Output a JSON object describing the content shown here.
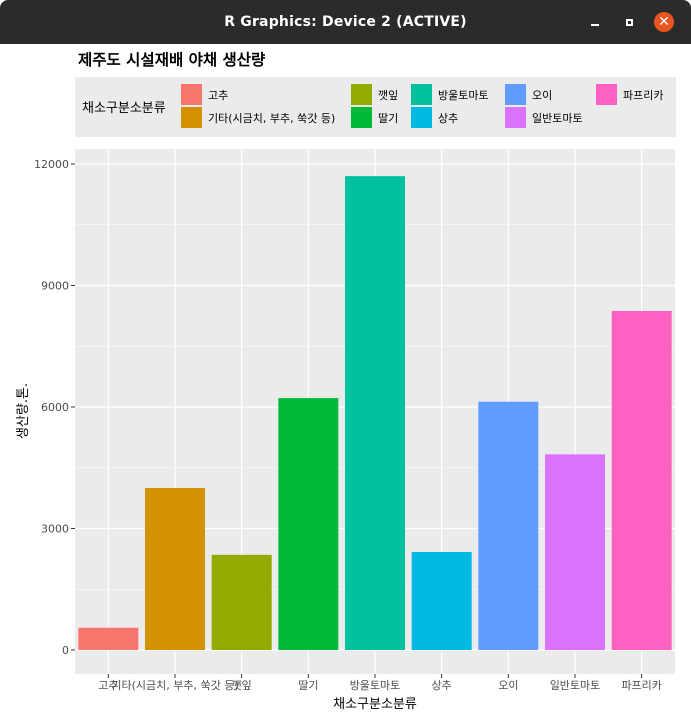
{
  "window": {
    "title": "R Graphics: Device 2 (ACTIVE)",
    "buttons": {
      "minimize_icon": "minimize-icon",
      "maximize_icon": "maximize-icon",
      "close_icon": "close-icon"
    },
    "close_glyph": "✕"
  },
  "chart_data": {
    "type": "bar",
    "title": "제주도 시설재배 야채 생산량",
    "xlabel": "채소구분소분류",
    "ylabel": "생산량.톤.",
    "ylim": [
      0,
      12000
    ],
    "yticks": [
      "0",
      "3000",
      "6000",
      "9000",
      "12000"
    ],
    "ytick_values": [
      0,
      3000,
      6000,
      9000,
      12000
    ],
    "grid": true,
    "legend": {
      "title": "채소구분소분류",
      "position": "top"
    },
    "categories": [
      "고추",
      "기타(시금치, 부추, 쑥갓 등)",
      "깻잎",
      "딸기",
      "방울토마토",
      "상추",
      "오이",
      "일반토마토",
      "파프리카"
    ],
    "values": [
      550,
      4000,
      2350,
      6220,
      11700,
      2420,
      6130,
      4830,
      8370
    ],
    "colors": [
      "#F8766D",
      "#D39200",
      "#93AA00",
      "#00BA38",
      "#00C19F",
      "#00B9E3",
      "#619CFF",
      "#DB72FB",
      "#FF61C3"
    ]
  }
}
